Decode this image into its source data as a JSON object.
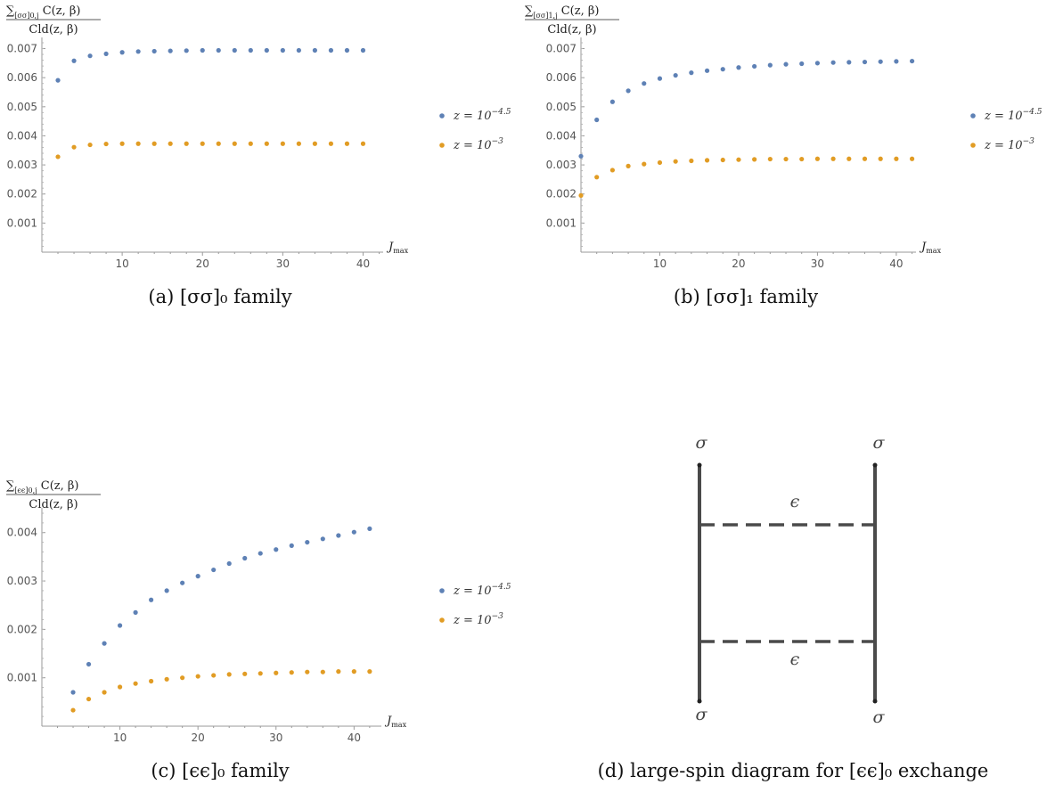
{
  "colors": {
    "series_blue": "#5e81b5",
    "series_orange": "#e19c24",
    "axis": "#888888",
    "diagram_line": "#4a4a4a"
  },
  "chart_data": [
    {
      "type": "scatter",
      "title": "",
      "ylabel": "∑[σσ]0,j C(z,β) / Cld(z,β)",
      "ylabel_num": "∑",
      "ylabel_sub": "[σσ]0,j",
      "ylabel_rest": " C(z, β)",
      "ylabel_den": "Cld(z, β)",
      "xlabel_main": "J",
      "xlabel_sub": "max",
      "xlim": [
        0,
        42.5
      ],
      "ylim": [
        0,
        0.0072
      ],
      "xticks": [
        10,
        20,
        30,
        40
      ],
      "xtick_labels": [
        "10",
        "20",
        "30",
        "40"
      ],
      "yticks": [
        0.001,
        0.002,
        0.003,
        0.004,
        0.005,
        0.006,
        0.007
      ],
      "ytick_labels": [
        "0.001",
        "0.002",
        "0.003",
        "0.004",
        "0.005",
        "0.006",
        "0.007"
      ],
      "legend_position": "right",
      "caption": "(a) [σσ]₀ family",
      "x": [
        2,
        4,
        6,
        8,
        10,
        12,
        14,
        16,
        18,
        20,
        22,
        24,
        26,
        28,
        30,
        32,
        34,
        36,
        38,
        40
      ],
      "series": [
        {
          "name": "z = 10",
          "exp": "−4.5",
          "color": "#5e81b5",
          "values": [
            0.00591,
            0.00658,
            0.00675,
            0.00682,
            0.00687,
            0.0069,
            0.00691,
            0.00692,
            0.00693,
            0.00694,
            0.00694,
            0.00694,
            0.00694,
            0.00694,
            0.00694,
            0.00694,
            0.00694,
            0.00694,
            0.00694,
            0.00694
          ]
        },
        {
          "name": "z = 10",
          "exp": "−3",
          "color": "#e19c24",
          "values": [
            0.00328,
            0.00361,
            0.00369,
            0.00372,
            0.00373,
            0.00373,
            0.00373,
            0.00373,
            0.00373,
            0.00373,
            0.00373,
            0.00373,
            0.00373,
            0.00373,
            0.00373,
            0.00373,
            0.00373,
            0.00373,
            0.00373,
            0.00373
          ]
        }
      ]
    },
    {
      "type": "scatter",
      "title": "",
      "ylabel": "∑[σσ]1,j C(z,β) / Cld(z,β)",
      "ylabel_num": "∑",
      "ylabel_sub": "[σσ]1,j",
      "ylabel_rest": " C(z, β)",
      "ylabel_den": "Cld(z, β)",
      "xlabel_main": "J",
      "xlabel_sub": "max",
      "xlim": [
        0,
        42.5
      ],
      "ylim": [
        0,
        0.0072
      ],
      "xticks": [
        10,
        20,
        30,
        40
      ],
      "xtick_labels": [
        "10",
        "20",
        "30",
        "40"
      ],
      "yticks": [
        0.001,
        0.002,
        0.003,
        0.004,
        0.005,
        0.006,
        0.007
      ],
      "ytick_labels": [
        "0.001",
        "0.002",
        "0.003",
        "0.004",
        "0.005",
        "0.006",
        "0.007"
      ],
      "legend_position": "right",
      "caption": "(b) [σσ]₁ family",
      "x": [
        0,
        2,
        4,
        6,
        8,
        10,
        12,
        14,
        16,
        18,
        20,
        22,
        24,
        26,
        28,
        30,
        32,
        34,
        36,
        38,
        40,
        42
      ],
      "series": [
        {
          "name": "z = 10",
          "exp": "−4.5",
          "color": "#5e81b5",
          "values": [
            0.0033,
            0.00455,
            0.00517,
            0.00555,
            0.0058,
            0.00597,
            0.00608,
            0.00617,
            0.00624,
            0.00629,
            0.00635,
            0.00639,
            0.00643,
            0.00646,
            0.00648,
            0.0065,
            0.00652,
            0.00653,
            0.00654,
            0.00655,
            0.00656,
            0.00657
          ]
        },
        {
          "name": "z = 10",
          "exp": "−3",
          "color": "#e19c24",
          "values": [
            0.00195,
            0.00258,
            0.00282,
            0.00296,
            0.00303,
            0.00308,
            0.00312,
            0.00314,
            0.00316,
            0.00317,
            0.00318,
            0.00319,
            0.0032,
            0.0032,
            0.0032,
            0.00321,
            0.00321,
            0.00321,
            0.00321,
            0.00321,
            0.00321,
            0.00321
          ]
        }
      ]
    },
    {
      "type": "scatter",
      "title": "",
      "ylabel": "∑[ϵϵ]0,j C(z,β) / Cld(z,β)",
      "ylabel_num": "∑",
      "ylabel_sub": "[ϵϵ]0,j",
      "ylabel_rest": " C(z, β)",
      "ylabel_den": "Cld(z, β)",
      "xlabel_main": "J",
      "xlabel_sub": "max",
      "xlim": [
        0,
        43.5
      ],
      "ylim": [
        0,
        0.0044
      ],
      "xticks": [
        10,
        20,
        30,
        40
      ],
      "xtick_labels": [
        "10",
        "20",
        "30",
        "40"
      ],
      "yticks": [
        0.001,
        0.002,
        0.003,
        0.004
      ],
      "ytick_labels": [
        "0.001",
        "0.002",
        "0.003",
        "0.004"
      ],
      "legend_position": "right",
      "caption": "(c) [ϵϵ]₀ family",
      "x": [
        4,
        6,
        8,
        10,
        12,
        14,
        16,
        18,
        20,
        22,
        24,
        26,
        28,
        30,
        32,
        34,
        36,
        38,
        40,
        42
      ],
      "series": [
        {
          "name": "z = 10",
          "exp": "−4.5",
          "color": "#5e81b5",
          "values": [
            0.0007,
            0.00128,
            0.00171,
            0.00208,
            0.00235,
            0.00261,
            0.0028,
            0.00296,
            0.0031,
            0.00323,
            0.00336,
            0.00347,
            0.00357,
            0.00365,
            0.00373,
            0.0038,
            0.00387,
            0.00394,
            0.00401,
            0.00408
          ]
        },
        {
          "name": "z = 10",
          "exp": "−3",
          "color": "#e19c24",
          "values": [
            0.00033,
            0.00056,
            0.0007,
            0.00081,
            0.00088,
            0.00093,
            0.00097,
            0.001,
            0.00103,
            0.00105,
            0.00107,
            0.00108,
            0.00109,
            0.0011,
            0.00111,
            0.00112,
            0.00112,
            0.00113,
            0.00113,
            0.00113
          ]
        }
      ]
    }
  ],
  "diagram": {
    "sigma_top_left": "σ",
    "sigma_top_right": "σ",
    "sigma_bottom_left": "σ",
    "sigma_bottom_right": "σ",
    "epsilon_top": "ϵ",
    "epsilon_bottom": "ϵ",
    "caption": "(d) large-spin diagram for [ϵϵ]₀ exchange"
  }
}
